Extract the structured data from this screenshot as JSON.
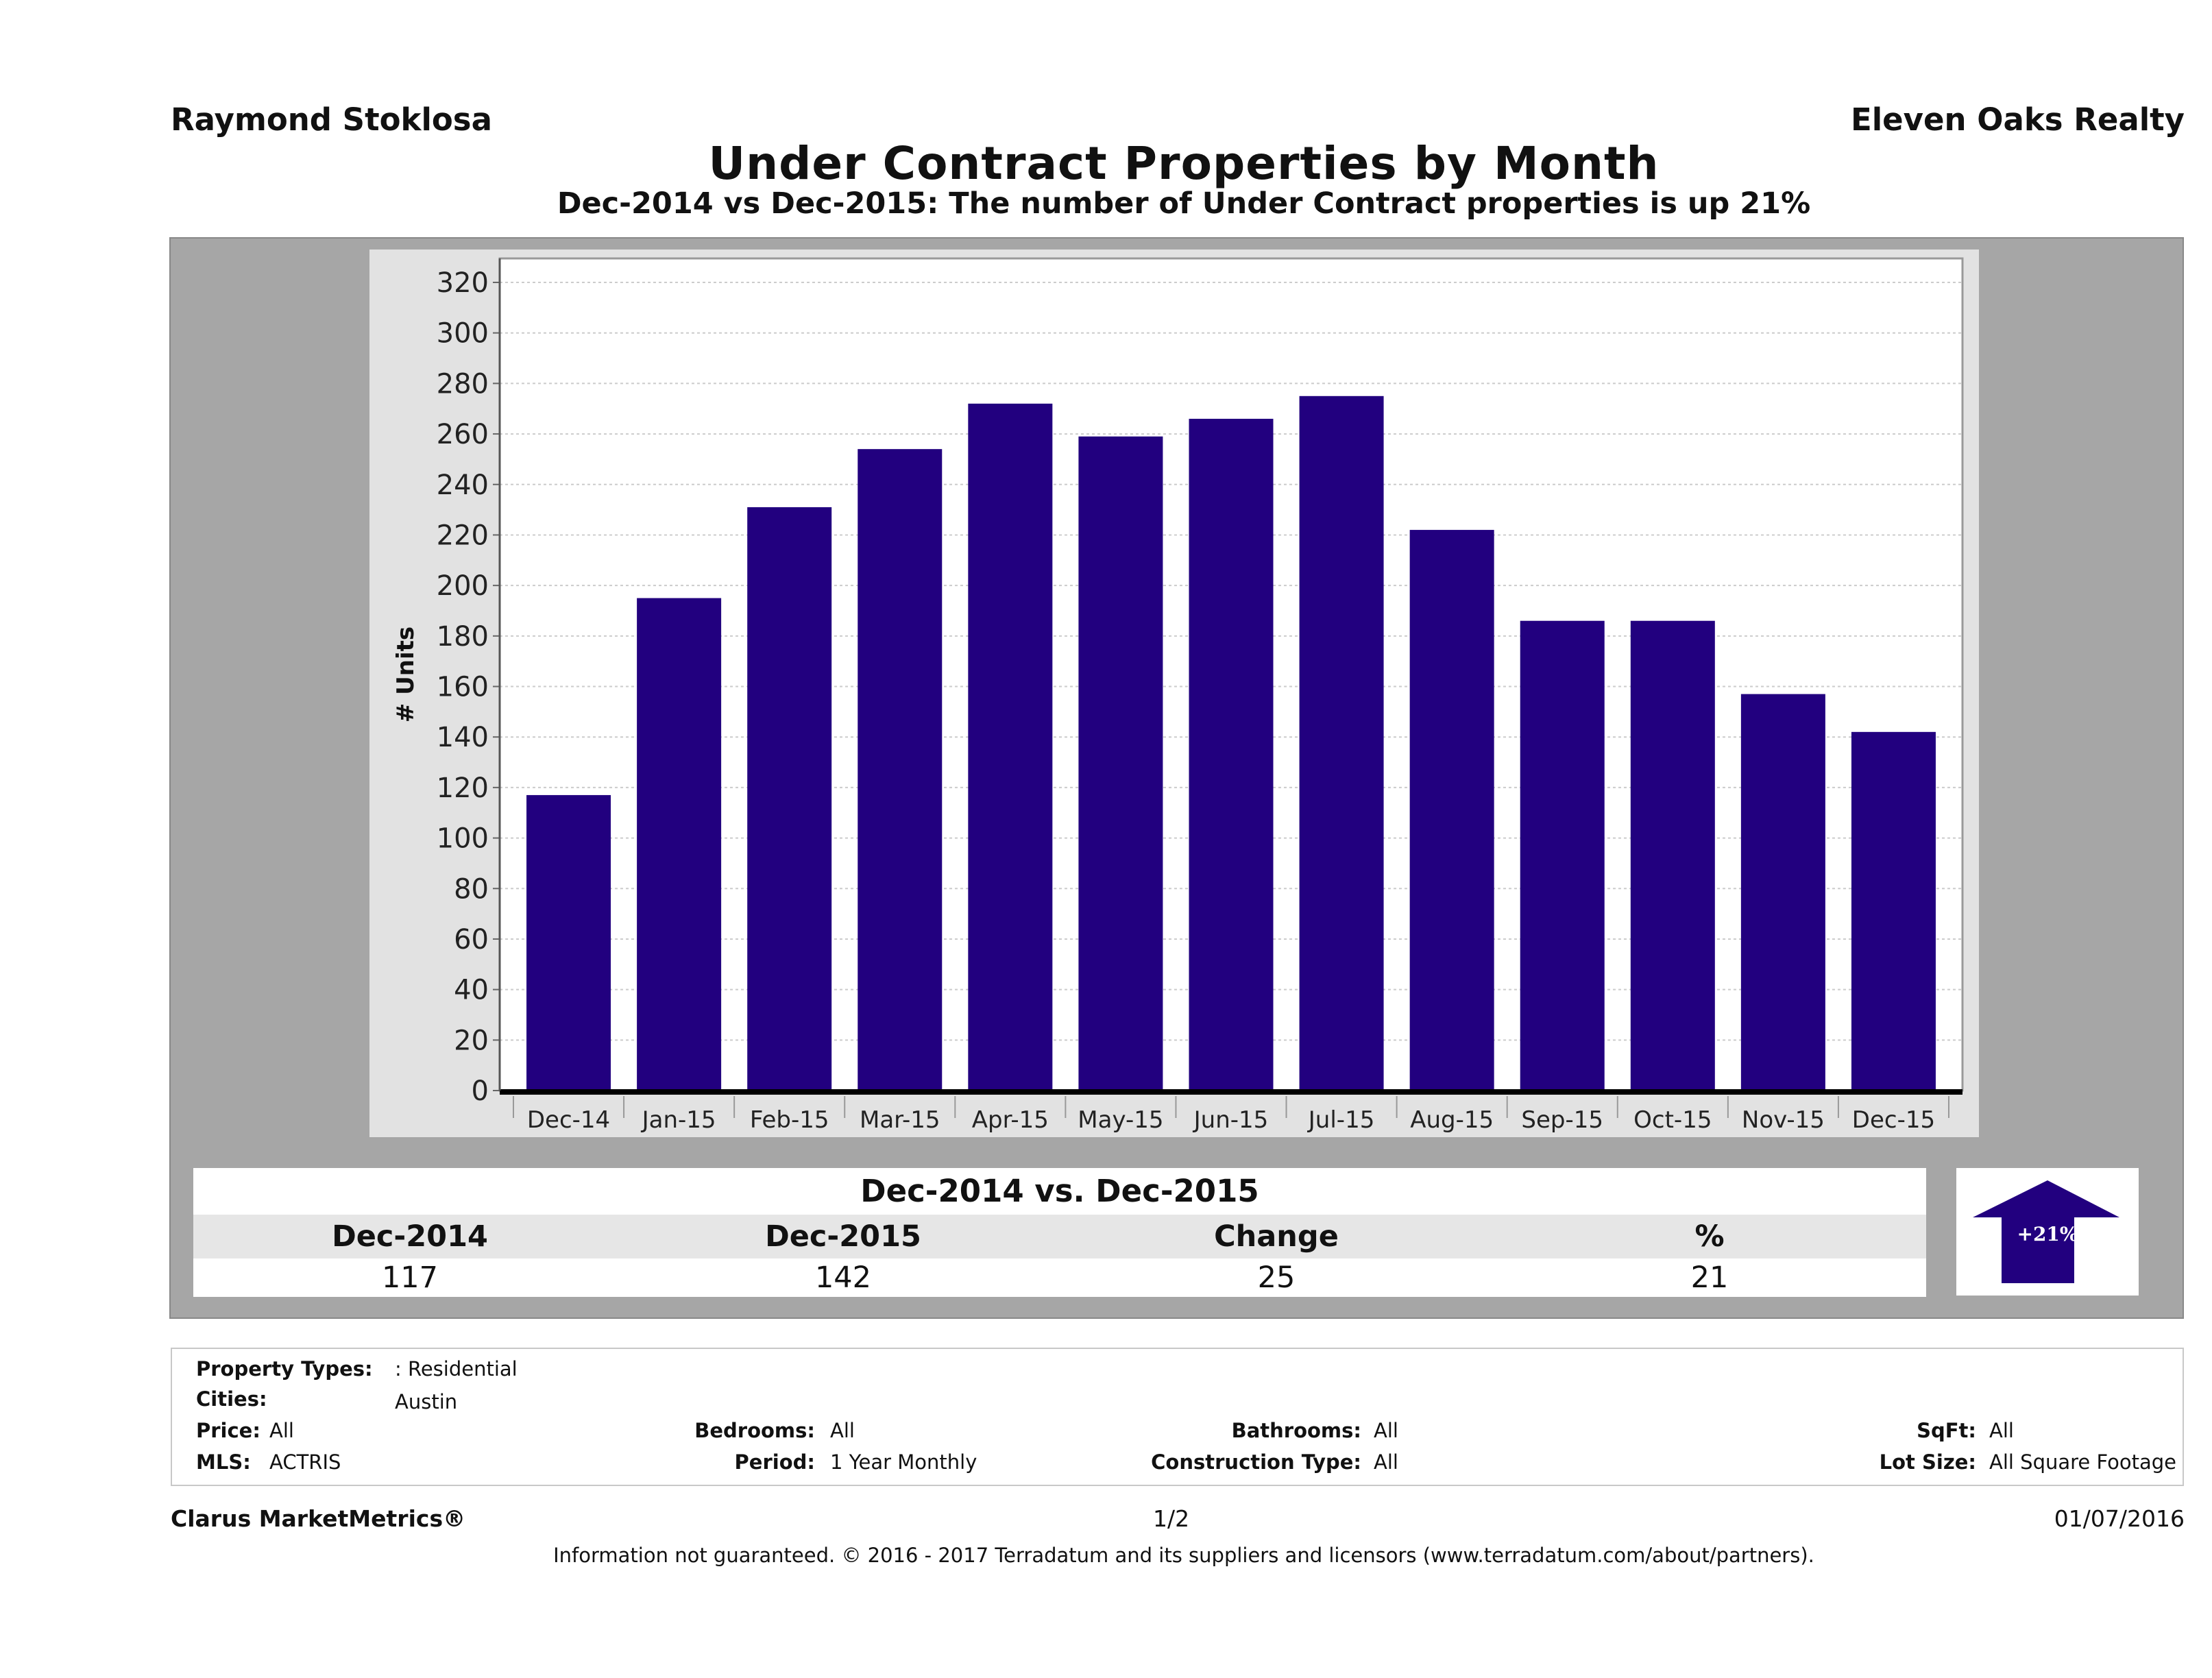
{
  "header": {
    "agent": "Raymond Stoklosa",
    "broker": "Eleven Oaks Realty",
    "title": "Under Contract Properties by Month",
    "subtitle": "Dec-2014 vs Dec-2015: The number of Under Contract  properties is up 21%"
  },
  "chart_data": {
    "type": "bar",
    "title": "",
    "xlabel": "",
    "ylabel": "# Units",
    "ylim": [
      0,
      320
    ],
    "yticks": [
      0,
      20,
      40,
      60,
      80,
      100,
      120,
      140,
      160,
      180,
      200,
      220,
      240,
      260,
      280,
      300,
      320
    ],
    "grid": true,
    "categories": [
      "Dec-14",
      "Jan-15",
      "Feb-15",
      "Mar-15",
      "Apr-15",
      "May-15",
      "Jun-15",
      "Jul-15",
      "Aug-15",
      "Sep-15",
      "Oct-15",
      "Nov-15",
      "Dec-15"
    ],
    "values": [
      117,
      195,
      231,
      254,
      272,
      259,
      266,
      275,
      222,
      186,
      186,
      157,
      142
    ],
    "bar_color": "#22007f"
  },
  "summary": {
    "title": "Dec-2014 vs. Dec-2015",
    "headers": [
      "Dec-2014",
      "Dec-2015",
      "Change",
      "%"
    ],
    "values": [
      "117",
      "142",
      "25",
      "21"
    ],
    "badge": "+21%",
    "badge_icon": "up-arrow-icon"
  },
  "info": {
    "property_types_label": "Property Types:",
    "property_types": ": Residential",
    "cities_label": "Cities:",
    "cities": "Austin",
    "price_label": "Price:",
    "price": "All",
    "mls_label": "MLS:",
    "mls": "ACTRIS",
    "bedrooms_label": "Bedrooms:",
    "bedrooms": "All",
    "period_label": "Period:",
    "period": "1 Year Monthly",
    "bathrooms_label": "Bathrooms:",
    "bathrooms": "All",
    "construction_label": "Construction Type:",
    "construction": "All",
    "sqft_label": "SqFt:",
    "sqft": "All",
    "lot_label": "Lot Size:",
    "lot": "All Square Footage"
  },
  "footer": {
    "brand": "Clarus MarketMetrics®",
    "page": "1/2",
    "date": "01/07/2016",
    "disclaimer": "Information not guaranteed. © 2016 - 2017 Terradatum and its suppliers and licensors (www.terradatum.com/about/partners)."
  }
}
